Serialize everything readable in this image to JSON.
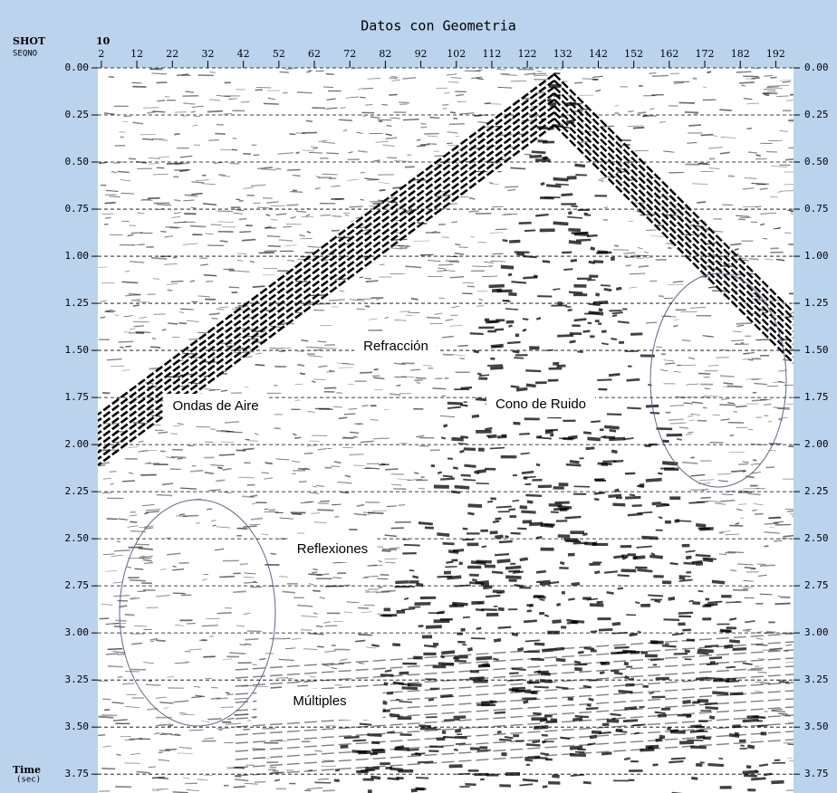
{
  "chart_data": {
    "type": "seismic",
    "title": "Datos con Geometria",
    "shot_label": "SHOT",
    "shot": 10,
    "x_label": "SEQNO",
    "y_label": "Time",
    "y_unit": "(sec)",
    "xlim": [
      1,
      197
    ],
    "xticks": [
      2,
      12,
      22,
      32,
      42,
      52,
      62,
      72,
      82,
      92,
      102,
      112,
      122,
      132,
      142,
      152,
      162,
      172,
      182,
      192
    ],
    "ylim": [
      0,
      3.85
    ],
    "yticks": [
      {
        "value": 0,
        "label": "0.00"
      },
      {
        "value": 0.25,
        "label": "0.25"
      },
      {
        "value": 0.5,
        "label": "0.50"
      },
      {
        "value": 0.75,
        "label": "0.75"
      },
      {
        "value": 1,
        "label": "1.00"
      },
      {
        "value": 1.25,
        "label": "1.25"
      },
      {
        "value": 1.5,
        "label": "1.50"
      },
      {
        "value": 1.75,
        "label": "1.75"
      },
      {
        "value": 2,
        "label": "2.00"
      },
      {
        "value": 2.25,
        "label": "2.25"
      },
      {
        "value": 2.5,
        "label": "2.50"
      },
      {
        "value": 2.75,
        "label": "2.75"
      },
      {
        "value": 3,
        "label": "3.00"
      },
      {
        "value": 3.25,
        "label": "3.25"
      },
      {
        "value": 3.5,
        "label": "3.50"
      },
      {
        "value": 3.75,
        "label": "3.75"
      }
    ],
    "grid": true,
    "annotations": [
      "Refracción",
      "Ondas de Aire",
      "Cono de Ruido",
      "Reflexiones",
      "Múltiples"
    ]
  }
}
